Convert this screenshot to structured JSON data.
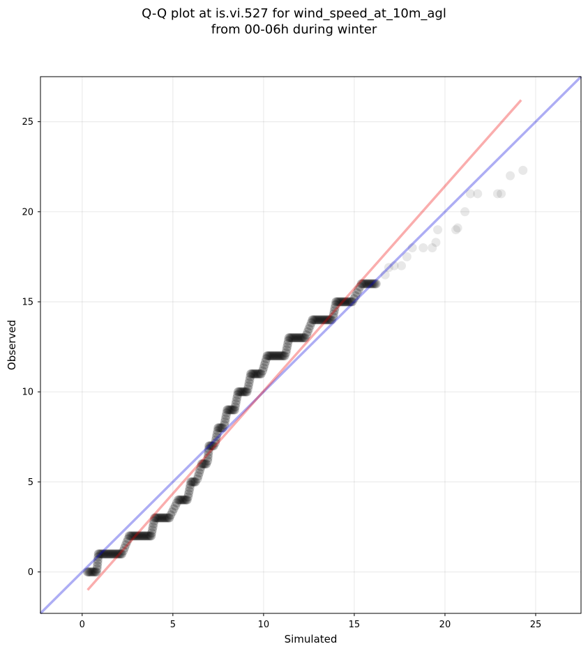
{
  "figure": {
    "title_line1": "Q-Q plot at is.vi.527 for wind_speed_at_10m_agl",
    "title_line2": "from 00-06h during winter"
  },
  "chart_data": {
    "type": "scatter",
    "title": "Q-Q plot at is.vi.527 for wind_speed_at_10m_agl from 00-06h during winter",
    "xlabel": "Simulated",
    "ylabel": "Observed",
    "xlim": [
      -2.3,
      27.5
    ],
    "ylim": [
      -2.3,
      27.5
    ],
    "xticks": [
      0,
      5,
      10,
      15,
      20,
      25
    ],
    "yticks": [
      0,
      5,
      10,
      15,
      20,
      25
    ],
    "grid": true,
    "point_color": "#000000",
    "steps": [
      {
        "y": 0,
        "x_from": 0.3,
        "x_to": 0.8
      },
      {
        "y": 1,
        "x_from": 0.9,
        "x_to": 2.2
      },
      {
        "y": 2,
        "x_from": 2.6,
        "x_to": 3.8
      },
      {
        "y": 3,
        "x_from": 4.0,
        "x_to": 4.8
      },
      {
        "y": 4,
        "x_from": 5.3,
        "x_to": 5.8
      },
      {
        "y": 5,
        "x_from": 6.0,
        "x_to": 6.3
      },
      {
        "y": 6,
        "x_from": 6.6,
        "x_to": 6.9
      },
      {
        "y": 7,
        "x_from": 7.0,
        "x_to": 7.3
      },
      {
        "y": 8,
        "x_from": 7.5,
        "x_to": 7.8
      },
      {
        "y": 9,
        "x_from": 8.0,
        "x_to": 8.4
      },
      {
        "y": 10,
        "x_from": 8.6,
        "x_to": 9.1
      },
      {
        "y": 11,
        "x_from": 9.3,
        "x_to": 9.9
      },
      {
        "y": 12,
        "x_from": 10.2,
        "x_to": 11.2
      },
      {
        "y": 13,
        "x_from": 11.4,
        "x_to": 12.3
      },
      {
        "y": 14,
        "x_from": 12.7,
        "x_to": 13.8
      },
      {
        "y": 15,
        "x_from": 14.0,
        "x_to": 14.9
      },
      {
        "y": 16,
        "x_from": 15.4,
        "x_to": 16.2
      }
    ],
    "points": [
      {
        "x": 16.7,
        "y": 16.5
      },
      {
        "x": 16.9,
        "y": 16.9
      },
      {
        "x": 17.2,
        "y": 17.0
      },
      {
        "x": 17.6,
        "y": 17.0
      },
      {
        "x": 17.9,
        "y": 17.5
      },
      {
        "x": 18.2,
        "y": 18.0
      },
      {
        "x": 18.8,
        "y": 18.0
      },
      {
        "x": 19.3,
        "y": 18.0
      },
      {
        "x": 19.5,
        "y": 18.3
      },
      {
        "x": 19.6,
        "y": 19.0
      },
      {
        "x": 20.6,
        "y": 19.0
      },
      {
        "x": 20.7,
        "y": 19.1
      },
      {
        "x": 21.1,
        "y": 20.0
      },
      {
        "x": 21.4,
        "y": 21.0
      },
      {
        "x": 21.8,
        "y": 21.0
      },
      {
        "x": 22.9,
        "y": 21.0
      },
      {
        "x": 23.1,
        "y": 21.0
      },
      {
        "x": 23.6,
        "y": 22.0
      },
      {
        "x": 24.3,
        "y": 22.3
      }
    ],
    "reference_lines": [
      {
        "kind": "identity",
        "color": "#0000dd",
        "x": [
          -2.3,
          27.5
        ],
        "y": [
          -2.3,
          27.5
        ]
      },
      {
        "kind": "fit",
        "color": "#ee0000",
        "x": [
          0.3,
          24.2
        ],
        "y": [
          -1.0,
          26.2
        ]
      }
    ]
  }
}
